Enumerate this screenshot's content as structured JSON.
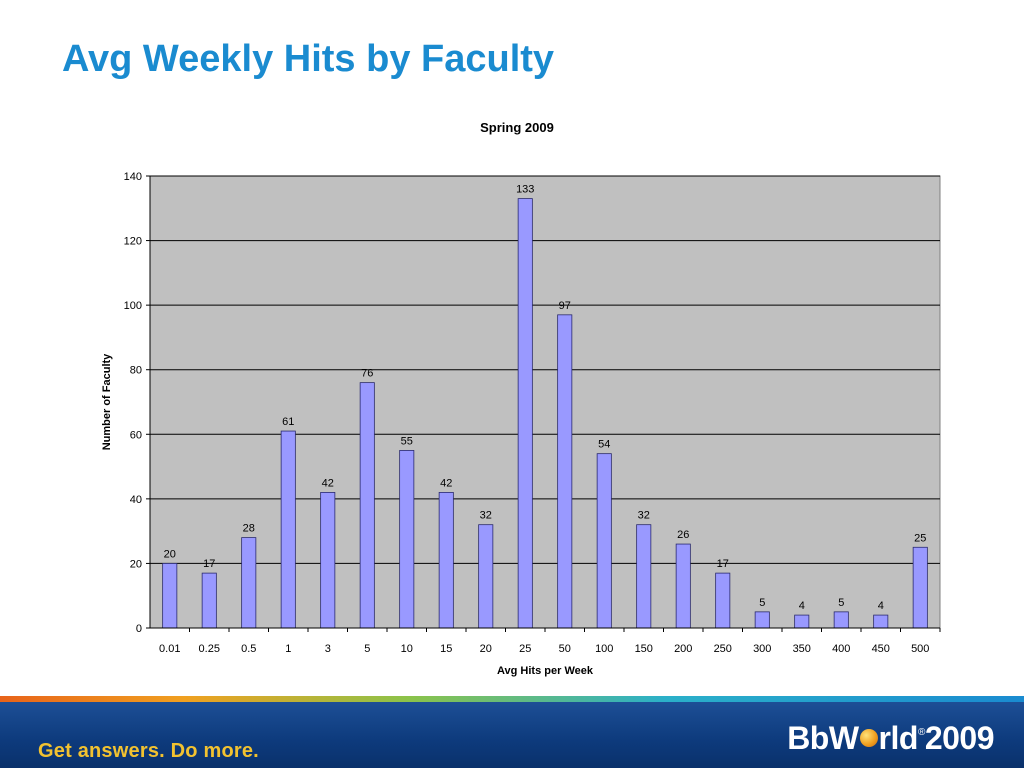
{
  "slide": {
    "title": "Avg Weekly Hits by Faculty"
  },
  "footer": {
    "tagline": "Get answers. Do more.",
    "brand_part1": "BbW",
    "brand_part2": "rld",
    "brand_reg": "®",
    "brand_year": "2009"
  },
  "chart_data": {
    "type": "bar",
    "title": "Spring 2009",
    "xlabel": "Avg Hits per Week",
    "ylabel": "Number of Faculty",
    "ylim": [
      0,
      140
    ],
    "yticks": [
      0,
      20,
      40,
      60,
      80,
      100,
      120,
      140
    ],
    "grid": true,
    "legend": "none",
    "categories": [
      "0.01",
      "0.25",
      "0.5",
      "1",
      "3",
      "5",
      "10",
      "15",
      "20",
      "25",
      "50",
      "100",
      "150",
      "200",
      "250",
      "300",
      "350",
      "400",
      "450",
      "500"
    ],
    "values": [
      20,
      17,
      28,
      61,
      42,
      76,
      55,
      42,
      32,
      133,
      97,
      54,
      32,
      26,
      17,
      5,
      4,
      5,
      4,
      25
    ],
    "colors": {
      "bar": "#9999ff",
      "bar_border": "#2b2b6e",
      "plot_bg": "#c0c0c0",
      "gridline": "#000000"
    }
  }
}
